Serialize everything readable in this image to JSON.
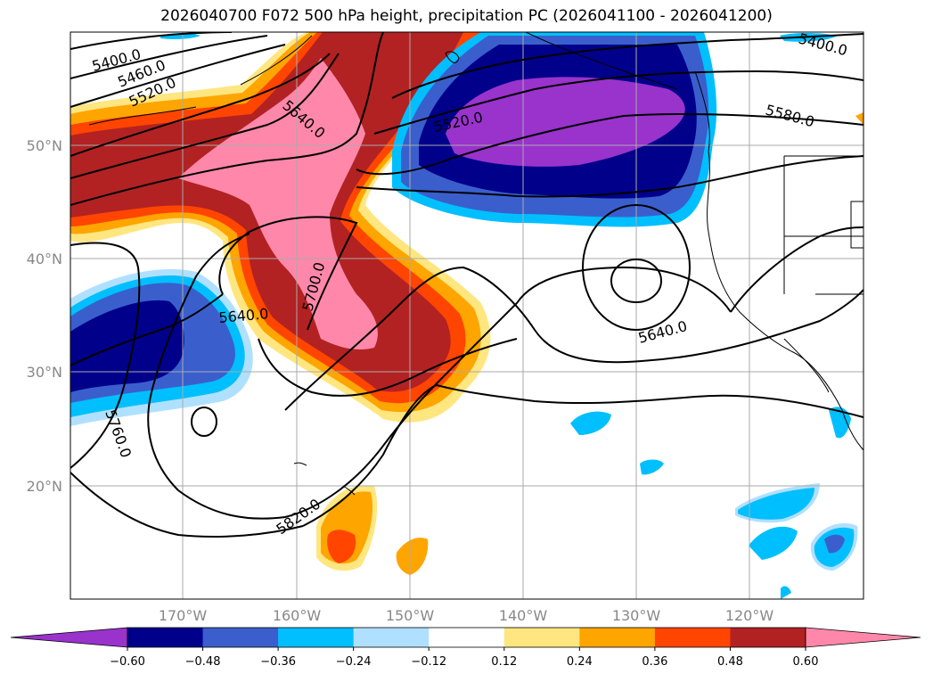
{
  "title": "2026040700 F072 500 hPa height, precipitation PC (2026041100 - 2026041200)",
  "map": {
    "lat_labels": [
      "50°N",
      "40°N",
      "30°N",
      "20°N"
    ],
    "lon_labels": [
      "170°W",
      "160°W",
      "150°W",
      "140°W",
      "130°W",
      "120°W"
    ],
    "contour_labels": [
      "5400.0",
      "5460.0",
      "5520.0",
      "5640.0",
      "5520.0",
      "5400.0",
      "5580.0",
      "5700.0",
      "5640.0",
      "5640.0",
      "5760.0",
      "5820.0"
    ]
  },
  "colorbar": {
    "colors": [
      "#9933cc",
      "#00008b",
      "#3a5fcd",
      "#00bfff",
      "#b0e0ff",
      "#ffffff",
      "#ffe680",
      "#ffa500",
      "#ff4500",
      "#b22222",
      "#ff88aa"
    ],
    "tick_labels": [
      "−0.60",
      "−0.48",
      "−0.36",
      "−0.24",
      "−0.12",
      "0.12",
      "0.24",
      "0.36",
      "0.48",
      "0.60"
    ]
  }
}
